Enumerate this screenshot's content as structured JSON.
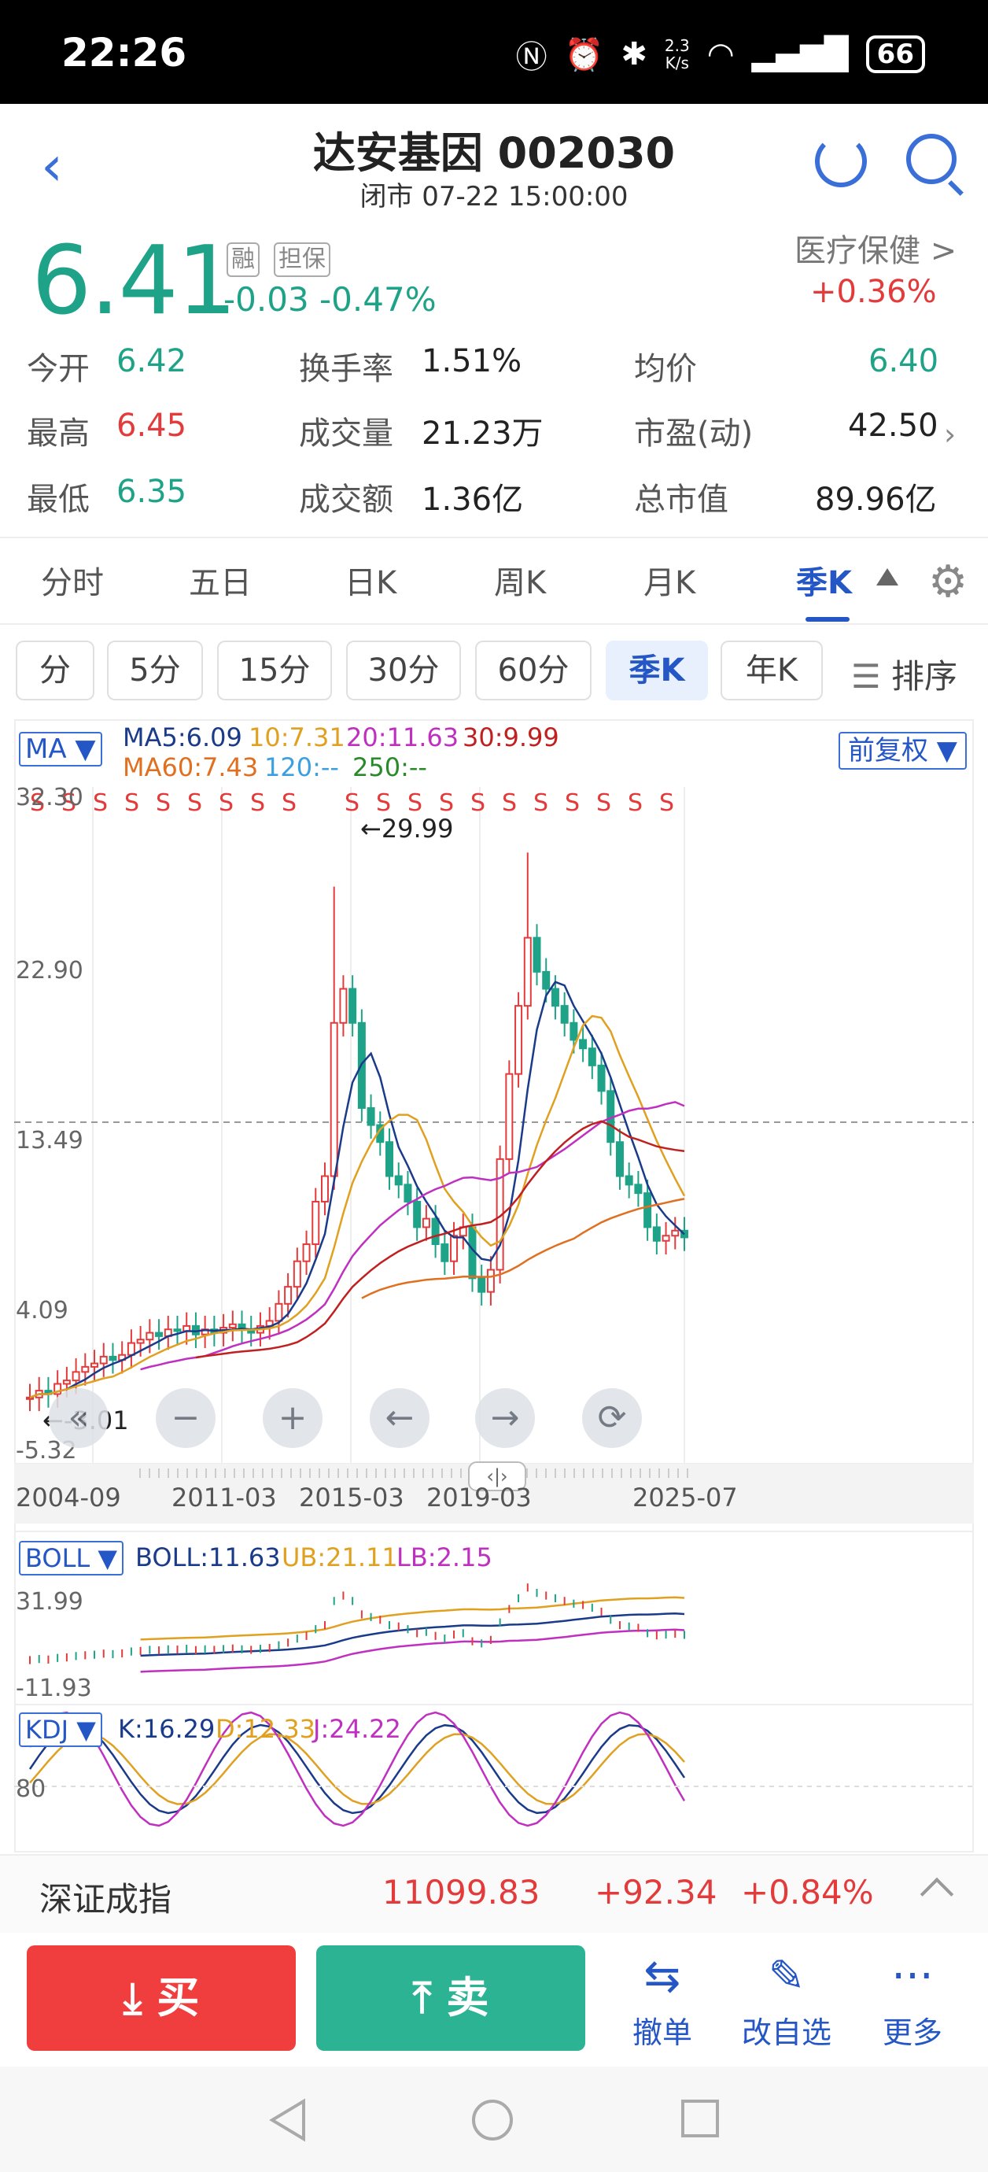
{
  "status_bar": {
    "time": "22:26",
    "speed_top": "2.3",
    "speed_bottom": "K/s",
    "battery": "66"
  },
  "header": {
    "title": "达安基因 002030",
    "subtitle": "闭市 07-22 15:00:00"
  },
  "price": {
    "last": "6.41",
    "tag_rong": "融",
    "tag_danbao": "担保",
    "change": "-0.03  -0.47%",
    "sector": "医疗保健 >",
    "sector_change": "+0.36%"
  },
  "quote": {
    "open_label": "今开",
    "open": "6.42",
    "high_label": "最高",
    "high": "6.45",
    "low_label": "最低",
    "low": "6.35",
    "turnover_label": "换手率",
    "turnover": "1.51%",
    "volume_label": "成交量",
    "volume": "21.23万",
    "amount_label": "成交额",
    "amount": "1.36亿",
    "avg_label": "均价",
    "avg": "6.40",
    "pe_label": "市盈(动)",
    "pe": "42.50",
    "mcap_label": "总市值",
    "mcap": "89.96亿"
  },
  "period_tabs": [
    "分时",
    "五日",
    "日K",
    "周K",
    "月K",
    "季K"
  ],
  "sub_tabs": [
    "分",
    "5分",
    "15分",
    "30分",
    "60分",
    "季K",
    "年K"
  ],
  "sort_label": "排序",
  "chart": {
    "indicator": "MA ▼",
    "ma5": "MA5:6.09",
    "ma10": "10:7.31",
    "ma20": "20:11.63",
    "ma30": "30:9.99",
    "ma60": "MA60:7.43",
    "ma120": "120:--",
    "ma250": "250:--",
    "fuquan": "前复权 ▼",
    "y_labels": [
      "32.30",
      "22.90",
      "13.49",
      "4.09",
      "-5.32"
    ],
    "x_labels": [
      "2004-09",
      "2011-03",
      "2015-03",
      "2019-03",
      "2025-07"
    ],
    "max_label": "←29.99",
    "min_label": "←-3.01",
    "boll_sel": "BOLL ▼",
    "boll": "BOLL:11.63",
    "boll_ub": "UB:21.11",
    "boll_lb": "LB:2.15",
    "boll_y": [
      "31.99",
      "-11.93"
    ],
    "kdj_sel": "KDJ ▼",
    "kdj_k": "K:16.29",
    "kdj_d": "D:12.33",
    "kdj_j": "J:24.22",
    "kdj_y": "80",
    "colors": {
      "up": "#e33b3b",
      "down": "#1fa388",
      "ma5": "#1a3a8a",
      "ma10": "#e0a020",
      "ma20": "#c030c0",
      "ma30": "#c02020",
      "ma60": "#e07020"
    }
  },
  "index": {
    "name": "深证成指",
    "value": "11099.83",
    "change": "+92.34",
    "pct": "+0.84%"
  },
  "actions": {
    "buy": "买",
    "sell": "卖",
    "cancel": "撤单",
    "edit_watch": "改自选",
    "more": "更多"
  }
}
